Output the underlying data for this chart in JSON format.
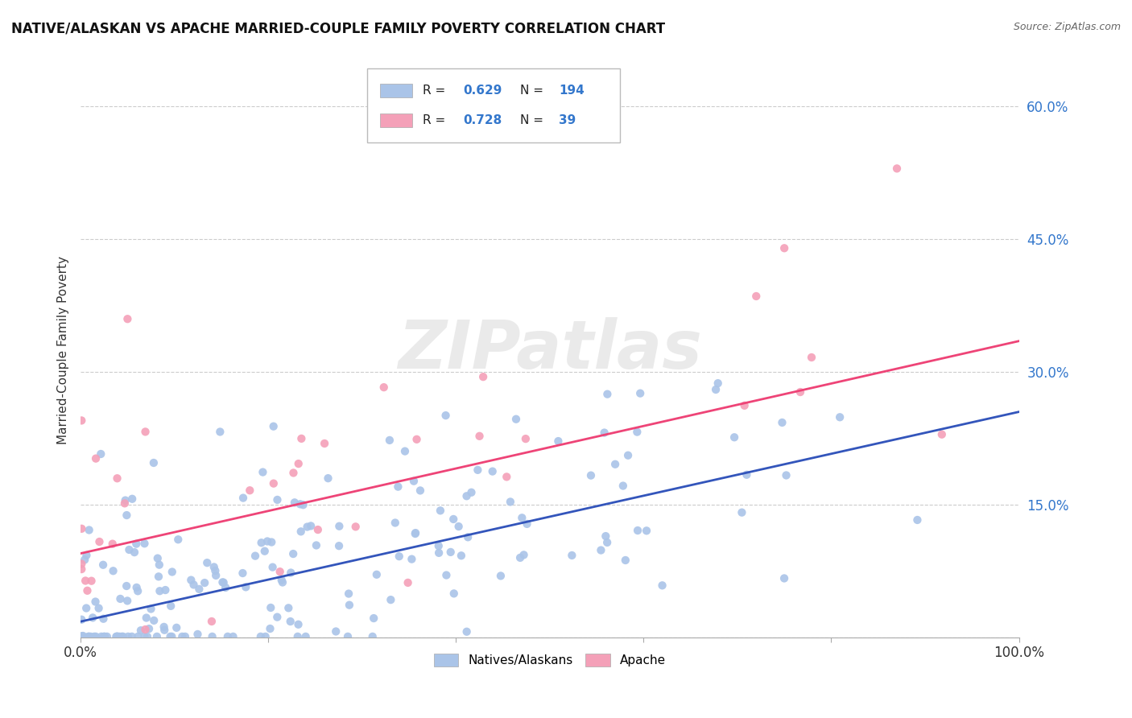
{
  "title": "NATIVE/ALASKAN VS APACHE MARRIED-COUPLE FAMILY POVERTY CORRELATION CHART",
  "source": "Source: ZipAtlas.com",
  "ylabel": "Married-Couple Family Poverty",
  "xlim": [
    0,
    1
  ],
  "ylim": [
    0,
    0.65
  ],
  "yticks": [
    0.0,
    0.15,
    0.3,
    0.45,
    0.6
  ],
  "ytick_labels": [
    "",
    "15.0%",
    "30.0%",
    "45.0%",
    "60.0%"
  ],
  "xticks": [
    0.0,
    0.2,
    0.4,
    0.6,
    0.8,
    1.0
  ],
  "xtick_labels": [
    "0.0%",
    "",
    "",
    "",
    "",
    "100.0%"
  ],
  "blue_color": "#aac4e8",
  "pink_color": "#f4a0b8",
  "blue_line_color": "#3355bb",
  "pink_line_color": "#ee4477",
  "watermark": "ZIPatlas",
  "background_color": "#ffffff",
  "grid_color": "#cccccc",
  "legend_label_blue": "Natives/Alaskans",
  "legend_label_pink": "Apache",
  "blue_R": "0.629",
  "blue_N": "194",
  "pink_R": "0.728",
  "pink_N": "39",
  "stat_color": "#3377cc",
  "blue_line_x": [
    0.0,
    1.0
  ],
  "blue_line_y": [
    0.018,
    0.255
  ],
  "pink_line_x": [
    0.0,
    1.0
  ],
  "pink_line_y": [
    0.095,
    0.335
  ]
}
